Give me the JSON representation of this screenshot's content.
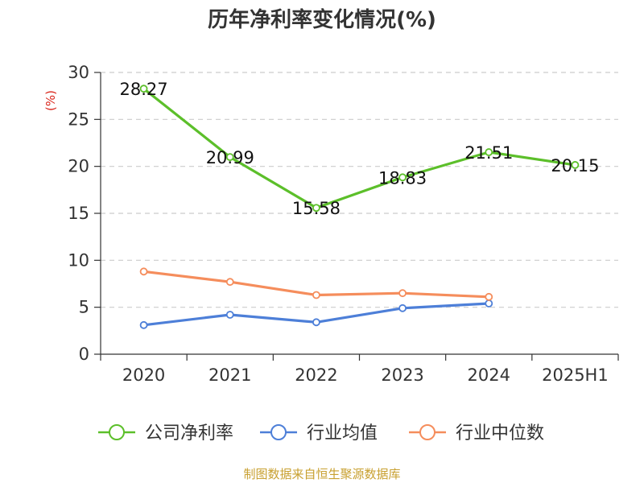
{
  "chart_data": {
    "type": "line",
    "title": "历年净利率变化情况(%)",
    "ylabel": "(%)",
    "categories": [
      "2020",
      "2021",
      "2022",
      "2023",
      "2024",
      "2025H1"
    ],
    "ylim": [
      0,
      30
    ],
    "yticks": [
      "0",
      "5",
      "10",
      "15",
      "20",
      "25",
      "30"
    ],
    "grid": true,
    "legend_position": "bottom",
    "series": [
      {
        "name": "公司净利率",
        "color": "#5cbf2a",
        "values": [
          28.27,
          20.99,
          15.58,
          18.83,
          21.51,
          20.15
        ],
        "labels": [
          "28.27",
          "20.99",
          "15.58",
          "18.83",
          "21.51",
          "20.15"
        ]
      },
      {
        "name": "行业均值",
        "color": "#4d7fd8",
        "values": [
          3.1,
          4.2,
          3.4,
          4.9,
          5.4,
          null
        ]
      },
      {
        "name": "行业中位数",
        "color": "#f58d5c",
        "values": [
          8.8,
          7.7,
          6.3,
          6.5,
          6.1,
          null
        ]
      }
    ]
  },
  "source": "制图数据来自恒生聚源数据库",
  "colors": {
    "unit_label": "#d9261c",
    "source_text": "#c8a030",
    "axis": "#333333",
    "grid": "#cccccc"
  }
}
